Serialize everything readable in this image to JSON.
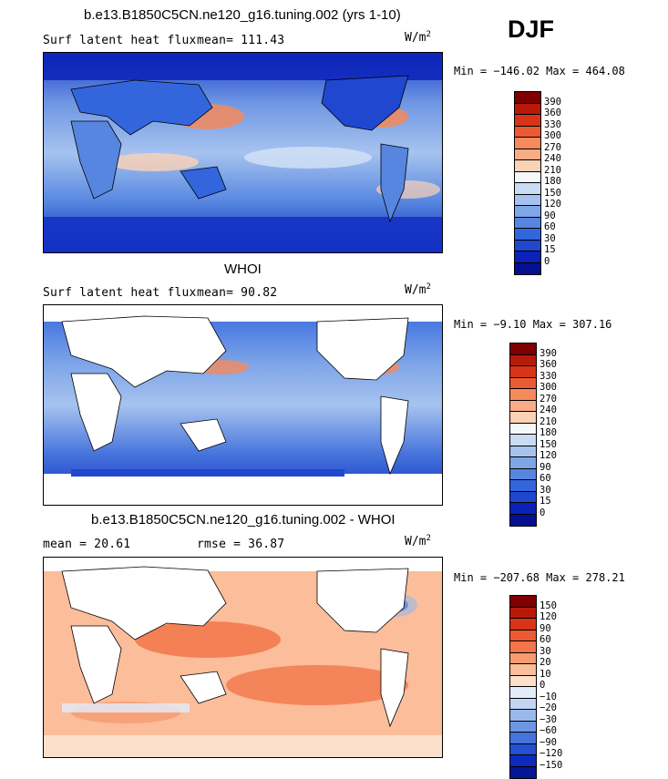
{
  "season": "DJF",
  "panels": [
    {
      "title": "b.e13.B1850C5CN.ne120_g16.tuning.002 (yrs 1-10)",
      "variable": "Surf latent heat flux",
      "mean_label": "mean= 111.43",
      "units": "W/m",
      "units_exp": "2",
      "minmax": "Min = −146.02 Max = 464.08",
      "colorbar_labels": [
        "390",
        "360",
        "330",
        "300",
        "270",
        "240",
        "210",
        "180",
        "150",
        "120",
        "90",
        "60",
        "30",
        "15",
        "0"
      ],
      "colors": [
        "#7f0000",
        "#b81a0a",
        "#d8341a",
        "#eb5a32",
        "#f58a5c",
        "#f9ac88",
        "#fcd2b6",
        "#f5f7fb",
        "#c9dcf4",
        "#a6c3ef",
        "#7fa6e8",
        "#5686e0",
        "#3366dd",
        "#1f47cf",
        "#0a22b8",
        "#04108f"
      ]
    },
    {
      "title": "WHOI",
      "variable": "Surf latent heat flux",
      "mean_label": "mean=  90.82",
      "units": "W/m",
      "units_exp": "2",
      "minmax": "Min =  −9.10 Max = 307.16",
      "colorbar_labels": [
        "390",
        "360",
        "330",
        "300",
        "270",
        "240",
        "210",
        "180",
        "150",
        "120",
        "90",
        "60",
        "30",
        "15",
        "0"
      ],
      "colors": [
        "#7f0000",
        "#b81a0a",
        "#d8341a",
        "#eb5a32",
        "#f58a5c",
        "#f9ac88",
        "#fcd2b6",
        "#f5f7fb",
        "#c9dcf4",
        "#a6c3ef",
        "#7fa6e8",
        "#5686e0",
        "#3366dd",
        "#1f47cf",
        "#0a22b8",
        "#04108f"
      ]
    },
    {
      "title": "b.e13.B1850C5CN.ne120_g16.tuning.002 - WHOI",
      "mean_label": "mean =  20.61",
      "rmse_label": "rmse =  36.87",
      "units": "W/m",
      "units_exp": "2",
      "minmax": "Min = −207.68 Max = 278.21",
      "colorbar_labels": [
        "150",
        "120",
        "90",
        "60",
        "30",
        "20",
        "10",
        "0",
        "−10",
        "−20",
        "−30",
        "−60",
        "−90",
        "−120",
        "−150"
      ],
      "colors": [
        "#7f0000",
        "#b81a0a",
        "#d8341a",
        "#eb5a32",
        "#f2764a",
        "#f79a70",
        "#fbbd9a",
        "#fde0cc",
        "#e3ecfa",
        "#c2d5f3",
        "#9ab8ec",
        "#6f96e3",
        "#4673dc",
        "#2550d2",
        "#0c2bbd",
        "#041691"
      ]
    }
  ]
}
